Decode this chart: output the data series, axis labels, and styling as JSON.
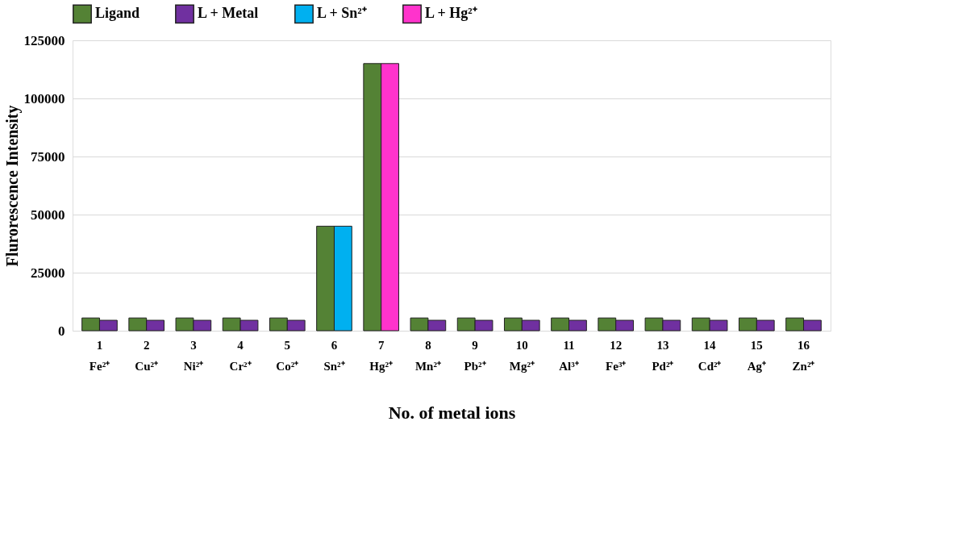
{
  "chart_data": {
    "type": "bar",
    "xlabel": "No. of metal ions",
    "ylabel": "Flurorescence Intensity",
    "categories": [
      "1 Fe²⁺",
      "2 Cu²⁺",
      "3 Ni²⁺",
      "4 Cr²⁺",
      "5 Co²⁺",
      "6 Sn²⁺",
      "7 Hg²⁺",
      "8 Mn²⁺",
      "9 Pb²⁺",
      "10 Mg²⁺",
      "11 Al³⁺",
      "12 Fe³⁺",
      "13 Pd²⁺",
      "14 Cd²⁺",
      "15 Ag⁺",
      "16 Zn²⁺"
    ],
    "series": [
      {
        "name": "Ligand",
        "color": "#548235",
        "values": [
          5500,
          5500,
          5500,
          5500,
          5500,
          45000,
          115000,
          5500,
          5500,
          5500,
          5500,
          5500,
          5500,
          5500,
          5500,
          5500
        ]
      },
      {
        "name": "L + Metal",
        "color": "#7030a0",
        "values": [
          4500,
          4500,
          4500,
          4500,
          4500,
          null,
          null,
          4500,
          4500,
          4500,
          4500,
          4500,
          4500,
          4500,
          4500,
          4500
        ]
      },
      {
        "name": "L + Sn²⁺",
        "color": "#00b0f0",
        "values": [
          null,
          null,
          null,
          null,
          null,
          45000,
          null,
          null,
          null,
          null,
          null,
          null,
          null,
          null,
          null,
          null
        ]
      },
      {
        "name": "L + Hg²⁺",
        "color": "#ff33cc",
        "values": [
          null,
          null,
          null,
          null,
          null,
          null,
          115000,
          null,
          null,
          null,
          null,
          null,
          null,
          null,
          null,
          null
        ]
      }
    ],
    "ylim": [
      0,
      125000
    ],
    "yticks": [
      0,
      25000,
      50000,
      75000,
      100000,
      125000
    ],
    "grid": "y",
    "legend": "top"
  }
}
